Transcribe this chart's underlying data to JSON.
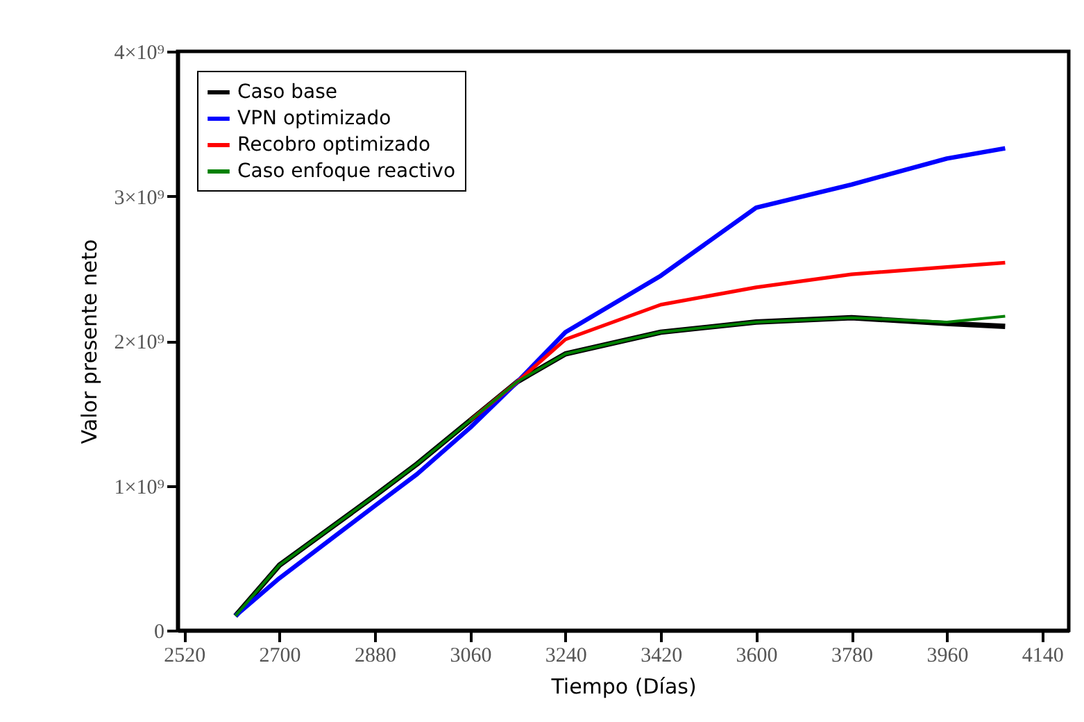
{
  "chart_data": {
    "type": "line",
    "xlabel": "Tiempo (Días)",
    "ylabel": "Valor presente neto",
    "xlim": [
      2508,
      4190
    ],
    "xticks": [
      2520,
      2700,
      2880,
      3060,
      3240,
      3420,
      3600,
      3780,
      3960,
      4140
    ],
    "ylim": [
      0,
      4000000000
    ],
    "yticks": [
      {
        "value": 0,
        "label": "0"
      },
      {
        "value": 1000000000,
        "label": "1×10⁹"
      },
      {
        "value": 2000000000,
        "label": "2×10⁹"
      },
      {
        "value": 3000000000,
        "label": "3×10⁹"
      },
      {
        "value": 4000000000,
        "label": "4×10⁹"
      }
    ],
    "x": [
      2617,
      2700,
      2880,
      2960,
      3060,
      3150,
      3240,
      3420,
      3600,
      3780,
      3960,
      4070
    ],
    "series": [
      {
        "name": "Caso base",
        "color": "#000000",
        "values": [
          100000000,
          450000000,
          930000000,
          1150000000,
          1450000000,
          1720000000,
          1910000000,
          2060000000,
          2130000000,
          2160000000,
          2120000000,
          2100000000
        ]
      },
      {
        "name": "VPN optimizado",
        "color": "#0000ff",
        "values": [
          100000000,
          360000000,
          860000000,
          1080000000,
          1400000000,
          1720000000,
          2060000000,
          2450000000,
          2920000000,
          3080000000,
          3260000000,
          3330000000
        ]
      },
      {
        "name": "Recobro optimizado",
        "color": "#ff0000",
        "values": [
          null,
          null,
          null,
          null,
          1450000000,
          1720000000,
          2010000000,
          2250000000,
          2370000000,
          2460000000,
          2510000000,
          2540000000
        ]
      },
      {
        "name": "Caso enfoque reactivo",
        "color": "#008000",
        "values": [
          100000000,
          450000000,
          930000000,
          1150000000,
          1450000000,
          1720000000,
          1910000000,
          2060000000,
          2130000000,
          2160000000,
          2130000000,
          2170000000
        ]
      }
    ],
    "grid": false,
    "legend": "top left",
    "marker": "none",
    "line_style": "solid"
  }
}
